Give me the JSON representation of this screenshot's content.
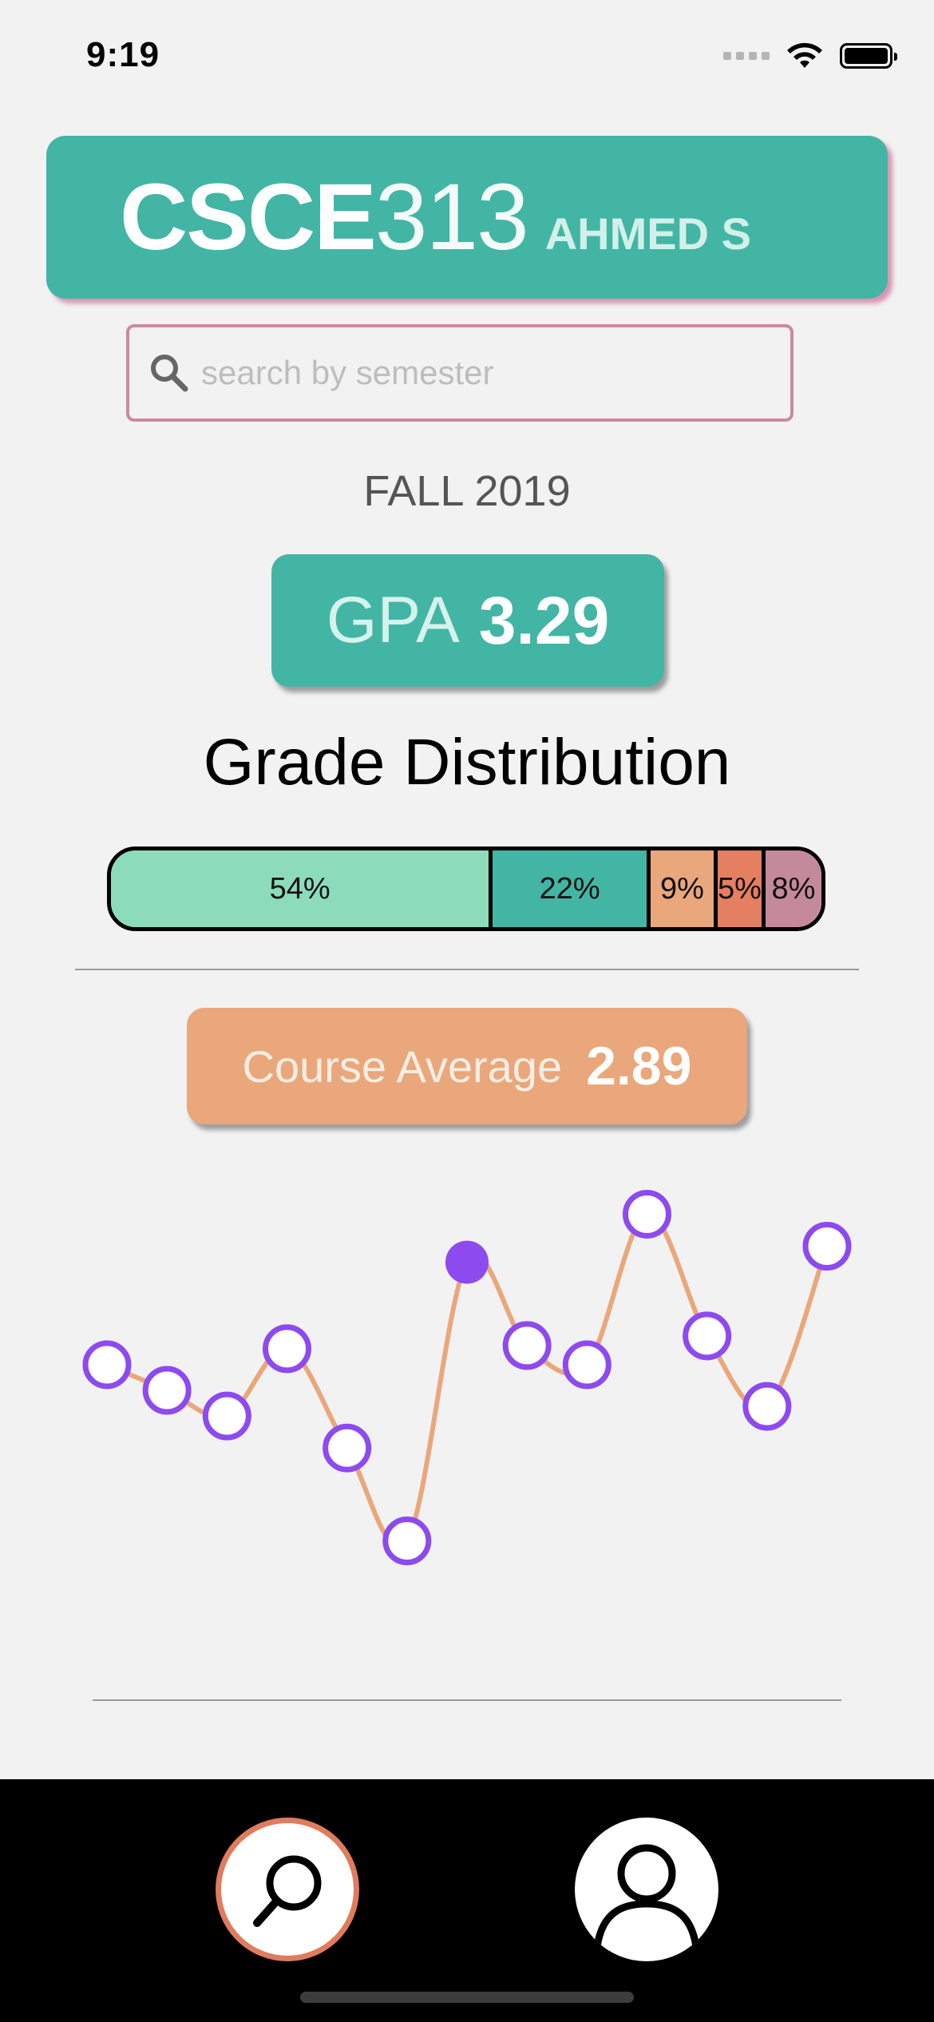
{
  "status_bar": {
    "time": "9:19"
  },
  "header": {
    "course_code": "CSCE",
    "course_number": "313",
    "instructor": "AHMED S"
  },
  "search": {
    "placeholder": "search by semester",
    "value": ""
  },
  "semester": "FALL 2019",
  "gpa": {
    "label": "GPA",
    "value": "3.29"
  },
  "grade_distribution": {
    "title": "Grade Distribution",
    "segments": [
      {
        "label": "54%",
        "percent": 54,
        "color": "#8cdcbc"
      },
      {
        "label": "22%",
        "percent": 22,
        "color": "#43b5a4"
      },
      {
        "label": "9%",
        "percent": 9,
        "color": "#e9a77b"
      },
      {
        "label": "5%",
        "percent": 5,
        "color": "#e47f62"
      },
      {
        "label": "8%",
        "percent": 8,
        "color": "#c48a9b"
      }
    ]
  },
  "course_average": {
    "label": "Course Average",
    "value": "2.89"
  },
  "chart_data": {
    "type": "line",
    "line_color": "#e9a77b",
    "point_color": "#8d4aee",
    "selected_index": 6,
    "values": [
      2.78,
      2.7,
      2.62,
      2.83,
      2.52,
      2.23,
      3.1,
      2.84,
      2.78,
      3.25,
      2.87,
      2.65,
      3.15
    ]
  },
  "tabs": [
    {
      "name": "search",
      "icon": "search-icon",
      "active": true,
      "ring_color": "#e07b5e"
    },
    {
      "name": "profile",
      "icon": "profile-icon",
      "active": false
    }
  ]
}
